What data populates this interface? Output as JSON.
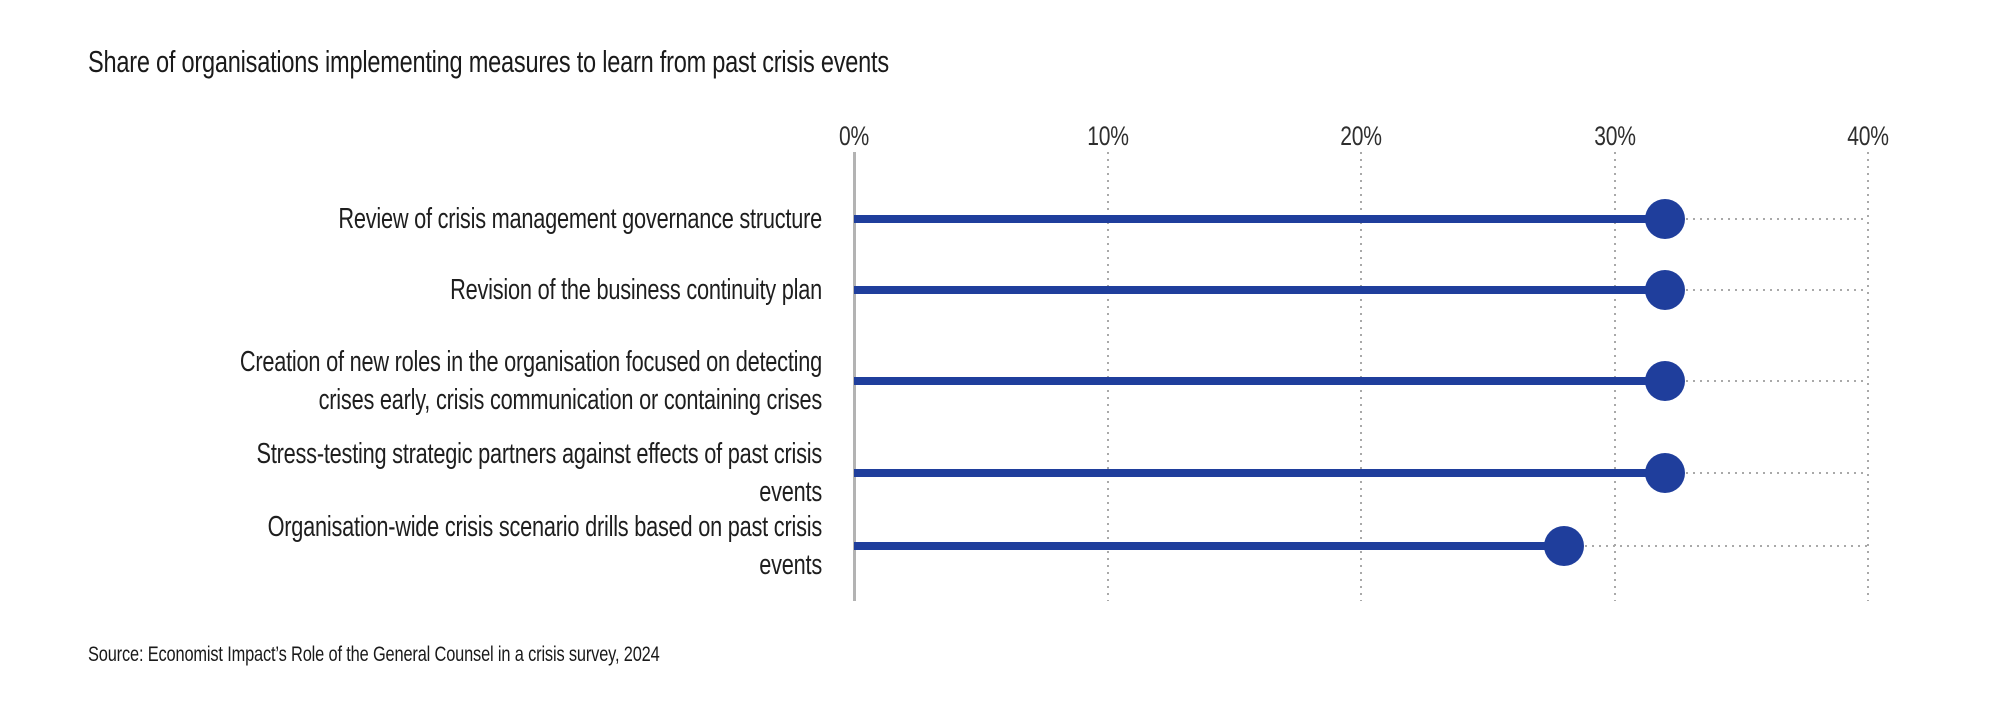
{
  "chart_data": {
    "type": "bar",
    "subtype": "horizontal-lollipop",
    "title": "Share of organisations implementing measures to learn from past crisis events",
    "categories": [
      "Review of crisis management governance structure",
      "Revision of the business continuity plan",
      "Creation of new roles in the organisation focused on detecting\ncrises early, crisis communication or containing crises",
      "Stress-testing strategic partners against effects of past crisis events",
      "Organisation-wide crisis scenario drills based on past crisis events"
    ],
    "values": [
      32,
      32,
      32,
      32,
      28
    ],
    "unit": "%",
    "xlabel": "",
    "ylabel": "",
    "xlim": [
      0,
      40
    ],
    "x_tick_values": [
      0,
      10,
      20,
      30,
      40
    ],
    "x_ticks": [
      "0%",
      "10%",
      "20%",
      "30%",
      "40%"
    ],
    "grid": "vertical-dotted",
    "legend_position": "none",
    "colors": {
      "bar": "#1f3e9c",
      "axis": "#b3b3b3",
      "grid_dots": "#a9a9a9",
      "text": "#1a1a1a"
    }
  },
  "source": {
    "text": "Source: Economist Impact’s Role of the General Counsel in a crisis survey, 2024"
  }
}
